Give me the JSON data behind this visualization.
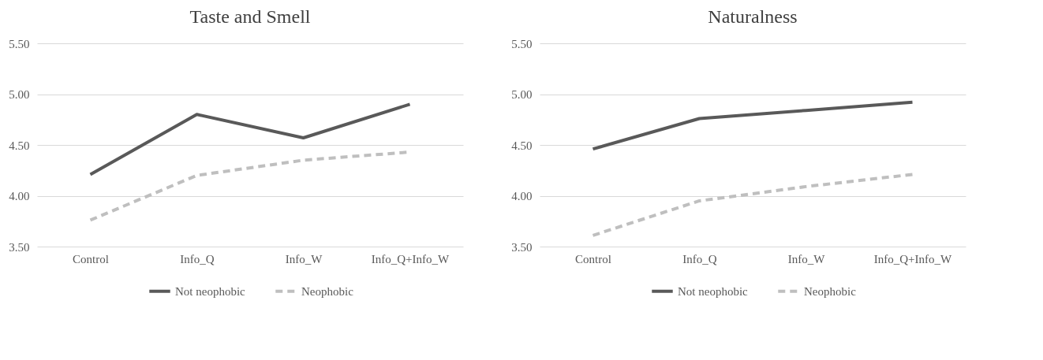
{
  "chart_data": [
    {
      "type": "line",
      "title": "Taste and Smell",
      "categories": [
        "Control",
        "Info_Q",
        "Info_W",
        "Info_Q+Info_W"
      ],
      "series": [
        {
          "name": "Not neophobic",
          "color": "#595959",
          "line_style": "solid",
          "values": [
            4.21,
            4.8,
            4.57,
            4.9
          ]
        },
        {
          "name": "Neophobic",
          "color": "#bfbfbf",
          "line_style": "dashed",
          "values": [
            3.76,
            4.2,
            4.35,
            4.43
          ]
        }
      ],
      "ylim": [
        3.5,
        5.5
      ],
      "yticks": [
        {
          "value": 3.5,
          "label": "3.50"
        },
        {
          "value": 4,
          "label": "4.00"
        },
        {
          "value": 4.5,
          "label": "4.50"
        },
        {
          "value": 5,
          "label": "5.00"
        },
        {
          "value": 5.5,
          "label": "5.50"
        }
      ],
      "grid": "y",
      "legend": "bottom",
      "marker": "none"
    },
    {
      "type": "line",
      "title": "Naturalness",
      "categories": [
        "Control",
        "Info_Q",
        "Info_W",
        "Info_Q+Info_W"
      ],
      "series": [
        {
          "name": "Not neophobic",
          "color": "#595959",
          "line_style": "solid",
          "values": [
            4.46,
            4.76,
            4.84,
            4.92
          ]
        },
        {
          "name": "Neophobic",
          "color": "#bfbfbf",
          "line_style": "dashed",
          "values": [
            3.61,
            3.95,
            4.09,
            4.21
          ]
        }
      ],
      "ylim": [
        3.5,
        5.5
      ],
      "yticks": [
        {
          "value": 3.5,
          "label": "3.50"
        },
        {
          "value": 4,
          "label": "4.00"
        },
        {
          "value": 4.5,
          "label": "4.50"
        },
        {
          "value": 5,
          "label": "5.00"
        },
        {
          "value": 5.5,
          "label": "5.50"
        }
      ],
      "grid": "y",
      "legend": "bottom",
      "marker": "none"
    }
  ]
}
